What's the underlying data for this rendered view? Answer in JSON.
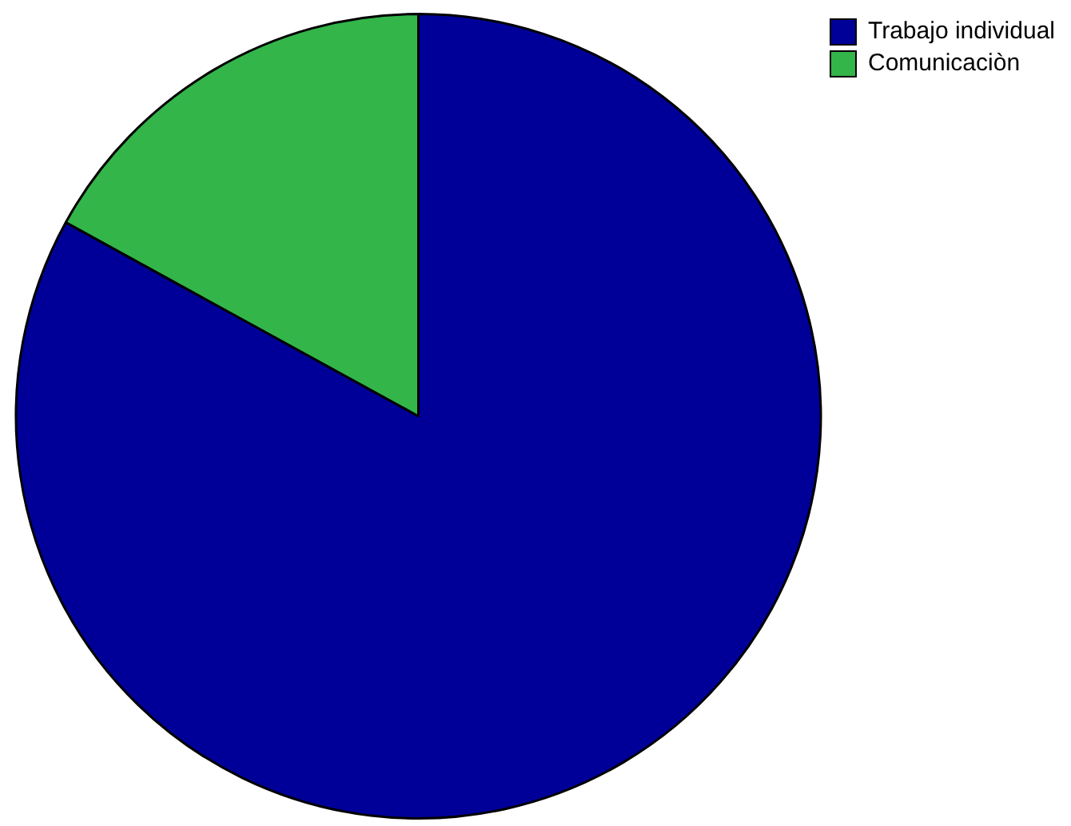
{
  "chart_data": {
    "type": "pie",
    "categories": [
      "Trabajo individual",
      "Comunicaciòn"
    ],
    "values": [
      83,
      17
    ],
    "colors": [
      "#000099",
      "#33b54a"
    ],
    "legend": "top right"
  }
}
